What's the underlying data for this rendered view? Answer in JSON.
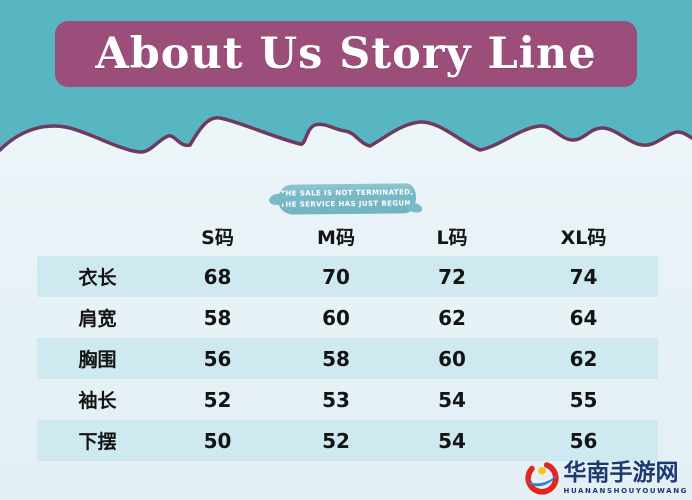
{
  "header": {
    "title": "About Us Story Line",
    "banner_color": "#9c4e7b",
    "background_teal": "#58b6c2",
    "wave_outline": "#6e3a60"
  },
  "badge": {
    "line1": "THE SALE IS NOT TERMINATED,",
    "line2": "THE SERVICE HAS JUST BEGUN.",
    "color": "#7ab9c7"
  },
  "chart_data": {
    "type": "table",
    "title": "About Us Story Line",
    "columns": [
      "S码",
      "M码",
      "L码",
      "XL码"
    ],
    "row_labels": [
      "衣长",
      "肩宽",
      "胸围",
      "袖长",
      "下摆"
    ],
    "rows": [
      [
        68,
        70,
        72,
        74
      ],
      [
        58,
        60,
        62,
        64
      ],
      [
        56,
        58,
        60,
        62
      ],
      [
        52,
        53,
        54,
        55
      ],
      [
        50,
        52,
        54,
        56
      ]
    ],
    "shaded_rows": [
      0,
      2,
      4
    ],
    "row_band_color": "#cfe9f0"
  },
  "watermark": {
    "title": "华南手游网",
    "subtitle": "HUANANSHOUYOUWANG",
    "text_color": "#1d3a70",
    "icon_colors": {
      "ring": "#e2251d",
      "dot": "#f6c51f",
      "swoosh": "#2f86d6"
    }
  }
}
